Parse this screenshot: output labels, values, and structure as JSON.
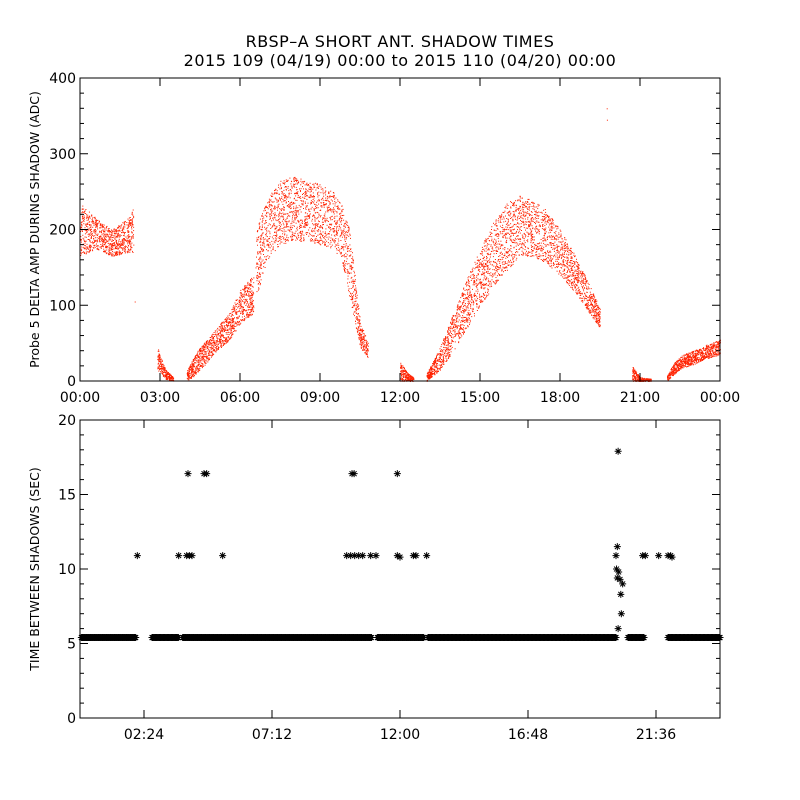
{
  "title": "RBSP–A SHORT ANT. SHADOW TIMES",
  "subtitle": "2015 109 (04/19) 00:00 to 2015 110 (04/20) 00:00",
  "chart_data": [
    {
      "type": "scatter",
      "ylabel": "Probe 5 DELTA AMP DURING SHADOW (ADC)",
      "xlabel": "",
      "x_unit": "hours",
      "xlim": [
        0,
        24
      ],
      "ylim": [
        0,
        400
      ],
      "x_ticks": [
        "00:00",
        "03:00",
        "06:00",
        "09:00",
        "12:00",
        "15:00",
        "18:00",
        "21:00",
        "00:00"
      ],
      "y_ticks": [
        "0",
        "100",
        "200",
        "300",
        "400"
      ],
      "color": "#ff2200",
      "band_segments": [
        {
          "x": [
            0.0,
            0.6,
            1.2,
            1.8,
            2.0
          ],
          "lo": [
            165,
            175,
            165,
            170,
            170
          ],
          "hi": [
            235,
            215,
            200,
            215,
            230
          ]
        },
        {
          "x": [
            2.9,
            3.2,
            3.5
          ],
          "lo": [
            15,
            3,
            0
          ],
          "hi": [
            45,
            15,
            5
          ]
        },
        {
          "x": [
            4.0,
            4.4,
            5.0,
            5.6,
            6.0,
            6.5
          ],
          "lo": [
            0,
            10,
            35,
            55,
            75,
            90
          ],
          "hi": [
            15,
            40,
            65,
            90,
            120,
            140
          ]
        },
        {
          "x": [
            6.6,
            7.0,
            7.5,
            8.0,
            8.5,
            9.0,
            9.5,
            9.8,
            10.1,
            10.5,
            10.8
          ],
          "lo": [
            110,
            160,
            180,
            185,
            185,
            180,
            175,
            160,
            110,
            45,
            30
          ],
          "hi": [
            200,
            240,
            265,
            270,
            265,
            260,
            250,
            235,
            200,
            80,
            50
          ]
        },
        {
          "x": [
            12.0,
            12.3,
            12.5
          ],
          "lo": [
            0,
            0,
            0
          ],
          "hi": [
            25,
            10,
            5
          ]
        },
        {
          "x": [
            13.0,
            13.5,
            14.0,
            14.5,
            15.0,
            15.5,
            16.0,
            16.5,
            17.0,
            17.5,
            18.0,
            18.5,
            19.0,
            19.5
          ],
          "lo": [
            0,
            15,
            40,
            70,
            100,
            125,
            145,
            165,
            165,
            155,
            140,
            120,
            95,
            70
          ],
          "hi": [
            10,
            45,
            90,
            135,
            175,
            210,
            235,
            245,
            240,
            225,
            200,
            170,
            135,
            95
          ]
        },
        {
          "x": [
            20.7,
            21.0,
            21.4
          ],
          "lo": [
            0,
            0,
            0
          ],
          "hi": [
            20,
            5,
            3
          ]
        },
        {
          "x": [
            22.0,
            22.3,
            22.6,
            23.0,
            23.5,
            24.0
          ],
          "lo": [
            0,
            10,
            18,
            22,
            30,
            35
          ],
          "hi": [
            8,
            25,
            35,
            40,
            48,
            55
          ]
        }
      ],
      "outliers": [
        [
          19.75,
          360
        ],
        [
          19.76,
          345
        ],
        [
          6.58,
          150
        ],
        [
          10.3,
          140
        ],
        [
          2.05,
          105
        ]
      ]
    },
    {
      "type": "scatter",
      "ylabel": "TIME BETWEEN SHADOWS (SEC)",
      "xlabel": "",
      "x_unit": "hours",
      "xlim": [
        0,
        24
      ],
      "ylim": [
        0,
        20
      ],
      "x_ticks": [
        "02:24",
        "07:12",
        "12:00",
        "16:48",
        "21:36"
      ],
      "y_ticks": [
        "0",
        "5",
        "10",
        "15",
        "20"
      ],
      "marker": "asterisk",
      "baseline_value": 5.4,
      "baseline_segments": [
        [
          0.05,
          2.1
        ],
        [
          2.7,
          3.7
        ],
        [
          3.85,
          10.95
        ],
        [
          11.15,
          12.9
        ],
        [
          13.05,
          20.1
        ],
        [
          20.55,
          21.15
        ],
        [
          22.05,
          24.0
        ]
      ],
      "points": [
        [
          2.15,
          10.9
        ],
        [
          3.7,
          10.9
        ],
        [
          4.0,
          10.9
        ],
        [
          4.1,
          10.9
        ],
        [
          4.2,
          10.9
        ],
        [
          4.05,
          16.4
        ],
        [
          4.65,
          16.4
        ],
        [
          4.75,
          16.4
        ],
        [
          5.35,
          10.9
        ],
        [
          10.0,
          10.9
        ],
        [
          10.15,
          10.9
        ],
        [
          10.3,
          10.9
        ],
        [
          10.45,
          10.9
        ],
        [
          10.6,
          10.9
        ],
        [
          10.2,
          16.4
        ],
        [
          10.28,
          16.4
        ],
        [
          10.9,
          10.9
        ],
        [
          11.1,
          10.9
        ],
        [
          11.9,
          10.9
        ],
        [
          12.0,
          10.8
        ],
        [
          11.9,
          16.4
        ],
        [
          12.5,
          10.9
        ],
        [
          12.6,
          10.9
        ],
        [
          13.0,
          10.9
        ],
        [
          20.1,
          10.9
        ],
        [
          20.15,
          11.5
        ],
        [
          20.18,
          17.9
        ],
        [
          20.12,
          10.0
        ],
        [
          20.2,
          9.8
        ],
        [
          20.15,
          9.4
        ],
        [
          20.25,
          9.3
        ],
        [
          20.35,
          9.0
        ],
        [
          20.28,
          8.3
        ],
        [
          20.3,
          7.0
        ],
        [
          20.18,
          6.0
        ],
        [
          21.1,
          10.9
        ],
        [
          21.2,
          10.9
        ],
        [
          21.7,
          10.9
        ],
        [
          22.05,
          10.9
        ],
        [
          22.15,
          10.9
        ],
        [
          22.2,
          10.8
        ]
      ]
    }
  ]
}
